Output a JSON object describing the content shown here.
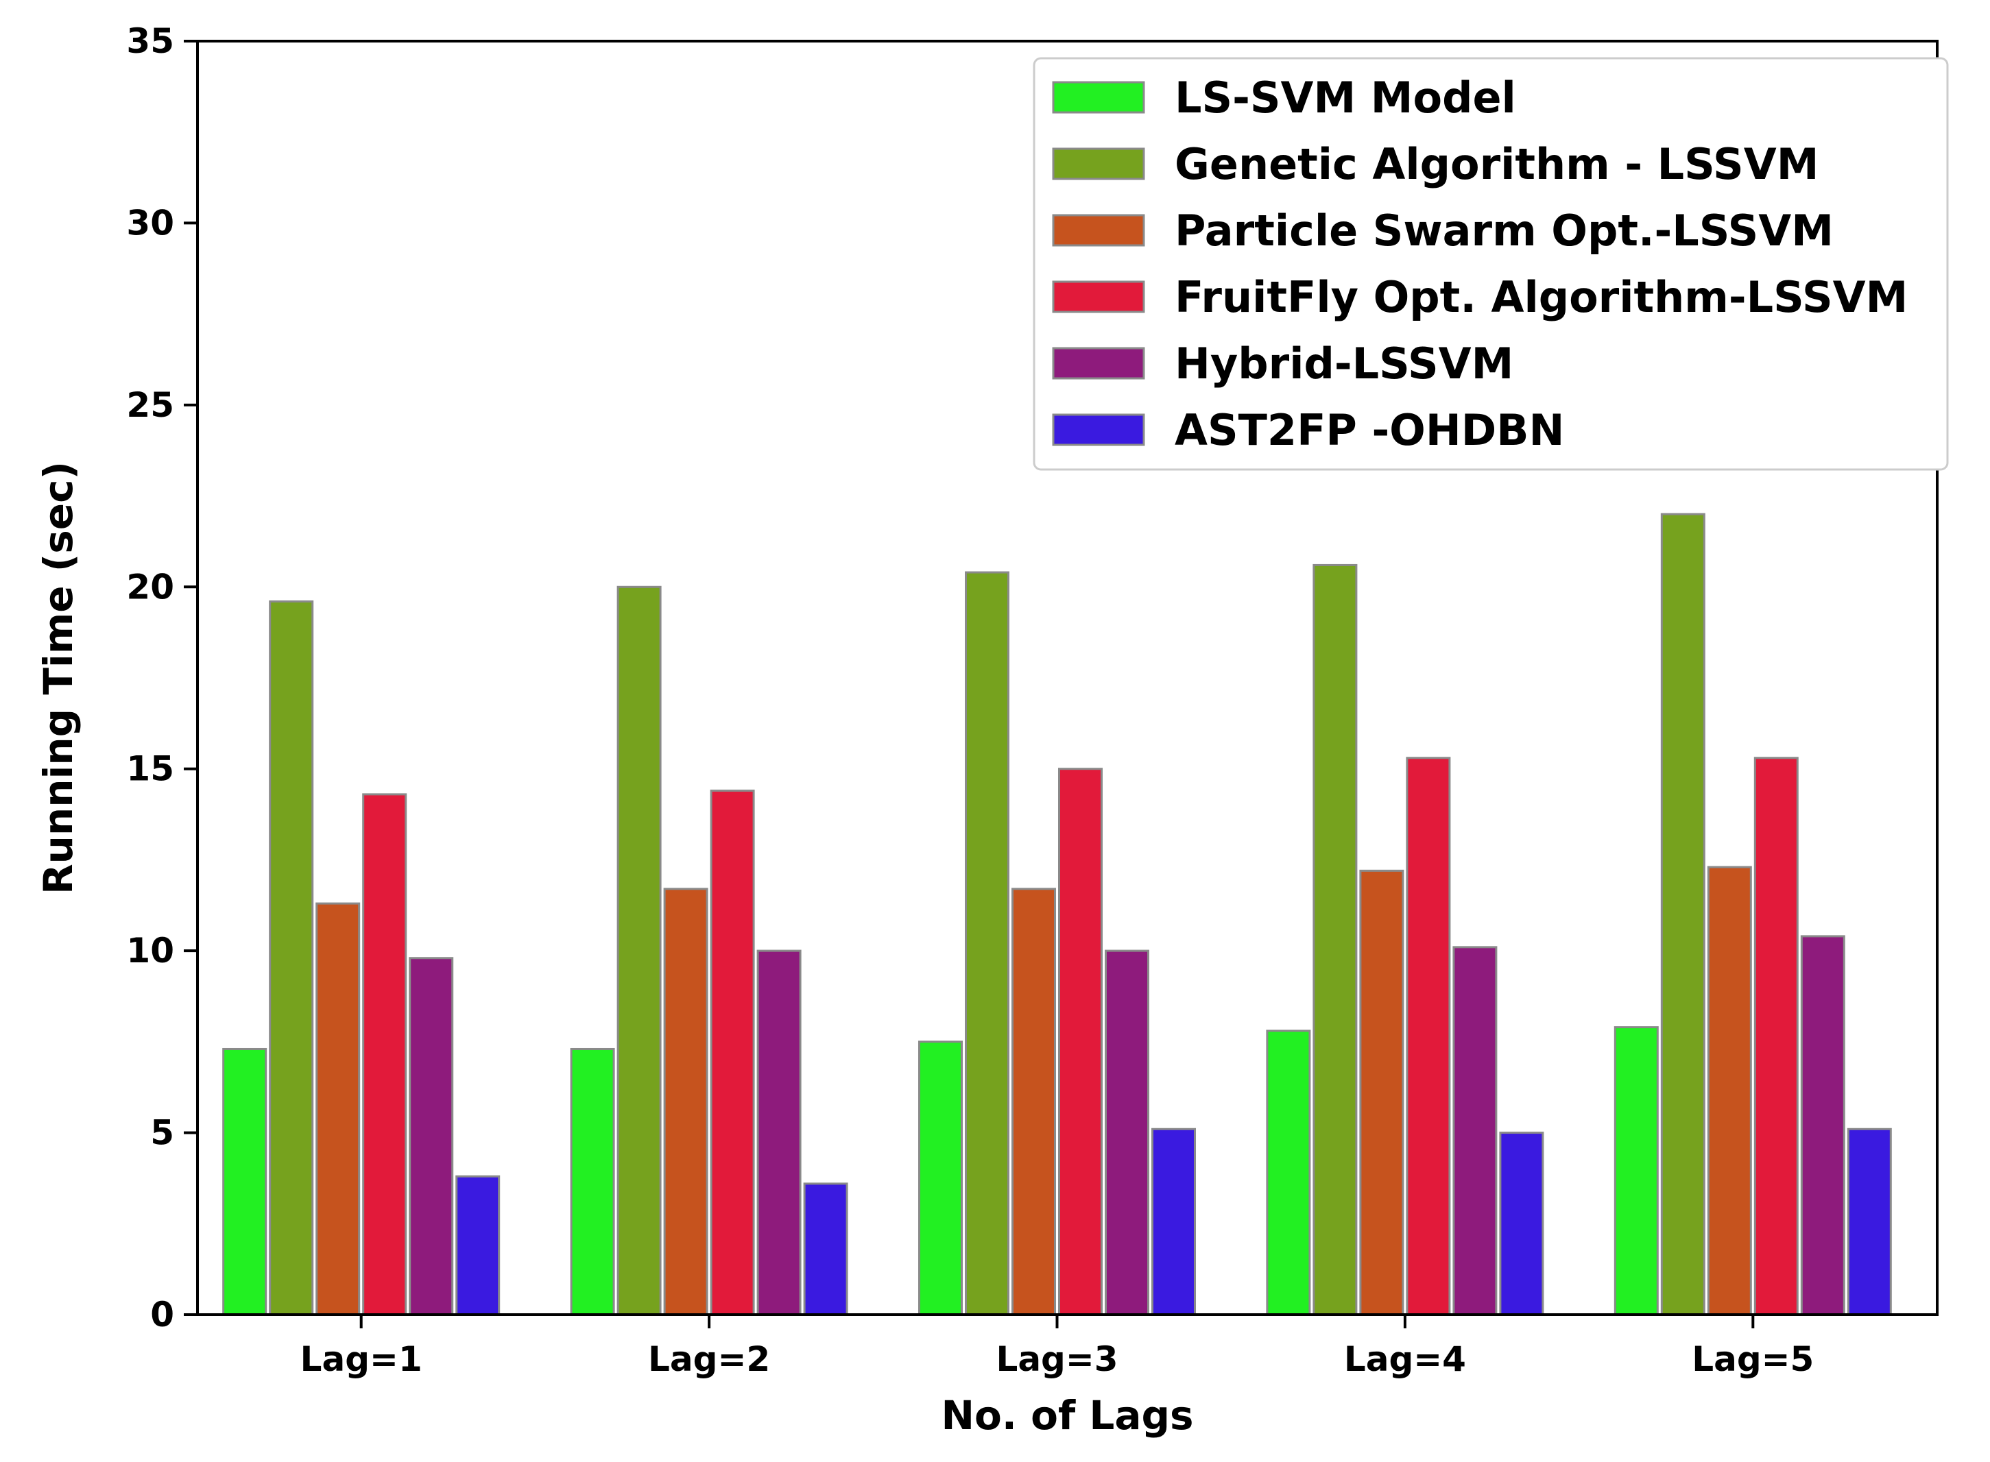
{
  "chart_data": {
    "type": "bar",
    "title": "",
    "xlabel": "No. of Lags",
    "ylabel": "Running Time (sec)",
    "ylim": [
      0,
      35
    ],
    "yticks": [
      0,
      5,
      10,
      15,
      20,
      25,
      30,
      35
    ],
    "categories": [
      "Lag=1",
      "Lag=2",
      "Lag=3",
      "Lag=4",
      "Lag=5"
    ],
    "legend_position": "top-right",
    "grid": false,
    "series": [
      {
        "name": "LS-SVM Model",
        "color": "#22f022",
        "values": [
          7.3,
          7.3,
          7.5,
          7.8,
          7.9
        ]
      },
      {
        "name": "Genetic Algorithm - LSSVM",
        "color": "#76a21e",
        "values": [
          19.6,
          20.0,
          20.4,
          20.6,
          22.0
        ]
      },
      {
        "name": "Particle Swarm Opt.-LSSVM",
        "color": "#c6531e",
        "values": [
          11.3,
          11.7,
          11.7,
          12.2,
          12.3
        ]
      },
      {
        "name": "FruitFly Opt. Algorithm-LSSVM",
        "color": "#e21a3a",
        "values": [
          14.3,
          14.4,
          15.0,
          15.3,
          15.3
        ]
      },
      {
        "name": "Hybrid-LSSVM",
        "color": "#8e1b7c",
        "values": [
          9.8,
          10.0,
          10.0,
          10.1,
          10.4
        ]
      },
      {
        "name": "AST2FP -OHDBN",
        "color": "#3a1ae0",
        "values": [
          3.8,
          3.6,
          5.1,
          5.0,
          5.1
        ]
      }
    ]
  }
}
